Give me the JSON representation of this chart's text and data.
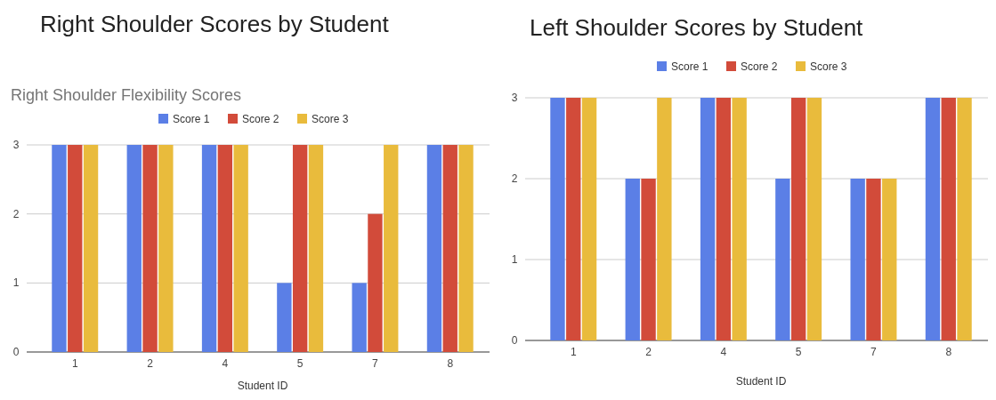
{
  "chart_data": [
    {
      "type": "bar",
      "title": "Right Shoulder Scores by Student",
      "subtitle": "Right Shoulder Flexibility Scores",
      "xlabel": "Student ID",
      "categories": [
        "1",
        "2",
        "4",
        "5",
        "7",
        "8"
      ],
      "series": [
        {
          "name": "Score 1",
          "color": "#5b7fe6",
          "values": [
            3,
            3,
            3,
            1,
            1,
            3
          ]
        },
        {
          "name": "Score 2",
          "color": "#d24b3a",
          "values": [
            3,
            3,
            3,
            3,
            2,
            3
          ]
        },
        {
          "name": "Score 3",
          "color": "#e9bb3c",
          "values": [
            3,
            3,
            3,
            3,
            3,
            3
          ]
        }
      ],
      "ylim": [
        0,
        3
      ],
      "yticks": [
        0,
        1,
        2,
        3
      ],
      "grid": "y",
      "legend": "top"
    },
    {
      "type": "bar",
      "title": "Left Shoulder Scores by Student",
      "xlabel": "Student ID",
      "categories": [
        "1",
        "2",
        "4",
        "5",
        "7",
        "8"
      ],
      "series": [
        {
          "name": "Score 1",
          "color": "#5b7fe6",
          "values": [
            3,
            2,
            3,
            2,
            2,
            3
          ]
        },
        {
          "name": "Score 2",
          "color": "#d24b3a",
          "values": [
            3,
            2,
            3,
            3,
            2,
            3
          ]
        },
        {
          "name": "Score 3",
          "color": "#e9bb3c",
          "values": [
            3,
            3,
            3,
            3,
            2,
            3
          ]
        }
      ],
      "ylim": [
        0,
        3
      ],
      "yticks": [
        0,
        1,
        2,
        3
      ],
      "grid": "y",
      "legend": "top"
    }
  ]
}
